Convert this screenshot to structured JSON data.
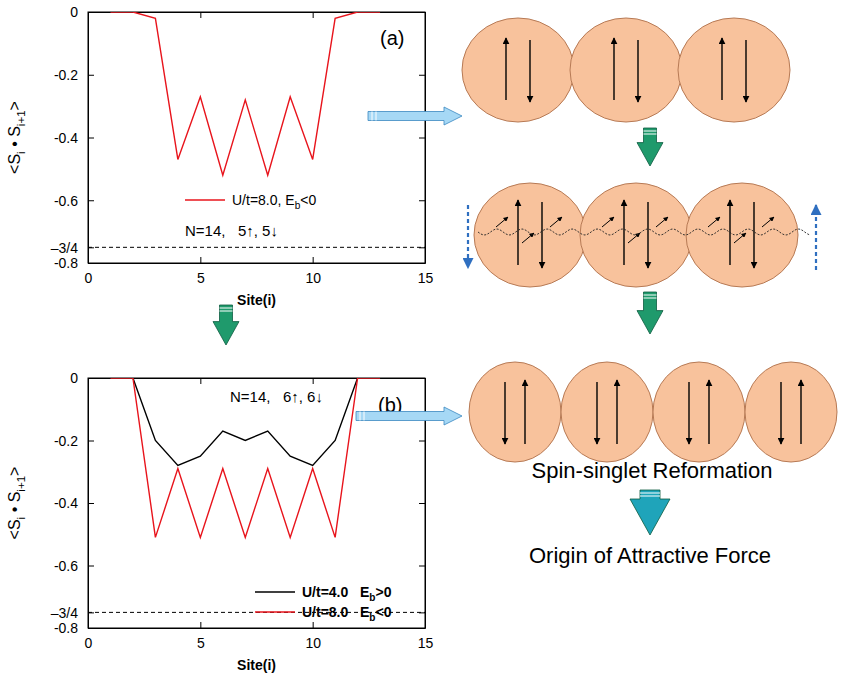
{
  "chart_data": [
    {
      "type": "line",
      "panel_label": "(a)",
      "annotation": "N=14,   5↑, 5↓",
      "xlabel": "Site(i)",
      "ylabel": "<Si • Si+1>",
      "x": [
        1,
        2,
        3,
        4,
        5,
        6,
        7,
        8,
        9,
        10,
        11,
        12,
        13
      ],
      "series": [
        {
          "name": "U/t=8.0, Eb<0",
          "color": "#e8141c",
          "values": [
            0,
            0,
            -0.02,
            -0.47,
            -0.27,
            -0.52,
            -0.28,
            -0.52,
            -0.27,
            -0.47,
            -0.02,
            0,
            0
          ]
        }
      ],
      "xlim": [
        0,
        15
      ],
      "xticks": [
        0,
        5,
        10,
        15
      ],
      "ylim": [
        -0.8,
        0
      ],
      "yticks": [
        0,
        -0.2,
        -0.4,
        -0.6,
        {
          "value": -0.75,
          "label": "–3/4"
        },
        -0.8
      ],
      "reference_line": -0.75,
      "legend": "lower center"
    },
    {
      "type": "line",
      "panel_label": "(b)",
      "annotation": "N=14,   6↑, 6↓",
      "xlabel": "Site(i)",
      "ylabel": "<Si • Si+1>",
      "x": [
        1,
        2,
        3,
        4,
        5,
        6,
        7,
        8,
        9,
        10,
        11,
        12,
        13
      ],
      "series": [
        {
          "name": "U/t=4.0   Eb>0",
          "color": "#000000",
          "values": [
            0,
            0,
            -0.2,
            -0.28,
            -0.25,
            -0.17,
            -0.2,
            -0.17,
            -0.25,
            -0.28,
            -0.2,
            0,
            0
          ]
        },
        {
          "name": "U/t=8.0   Eb<0",
          "color": "#e8141c",
          "values": [
            0,
            0,
            -0.51,
            -0.29,
            -0.51,
            -0.29,
            -0.51,
            -0.29,
            -0.51,
            -0.29,
            -0.51,
            0,
            0
          ]
        }
      ],
      "xlim": [
        0,
        15
      ],
      "xticks": [
        0,
        5,
        10,
        15
      ],
      "ylim": [
        -0.8,
        0
      ],
      "yticks": [
        0,
        -0.2,
        -0.4,
        -0.6,
        {
          "value": -0.75,
          "label": "–3/4"
        },
        -0.8
      ],
      "reference_line": -0.75,
      "legend": "lower right"
    }
  ],
  "diagram": {
    "labels": [
      "Spin-singlet Reformation",
      "Origin of Attractive Force"
    ]
  }
}
